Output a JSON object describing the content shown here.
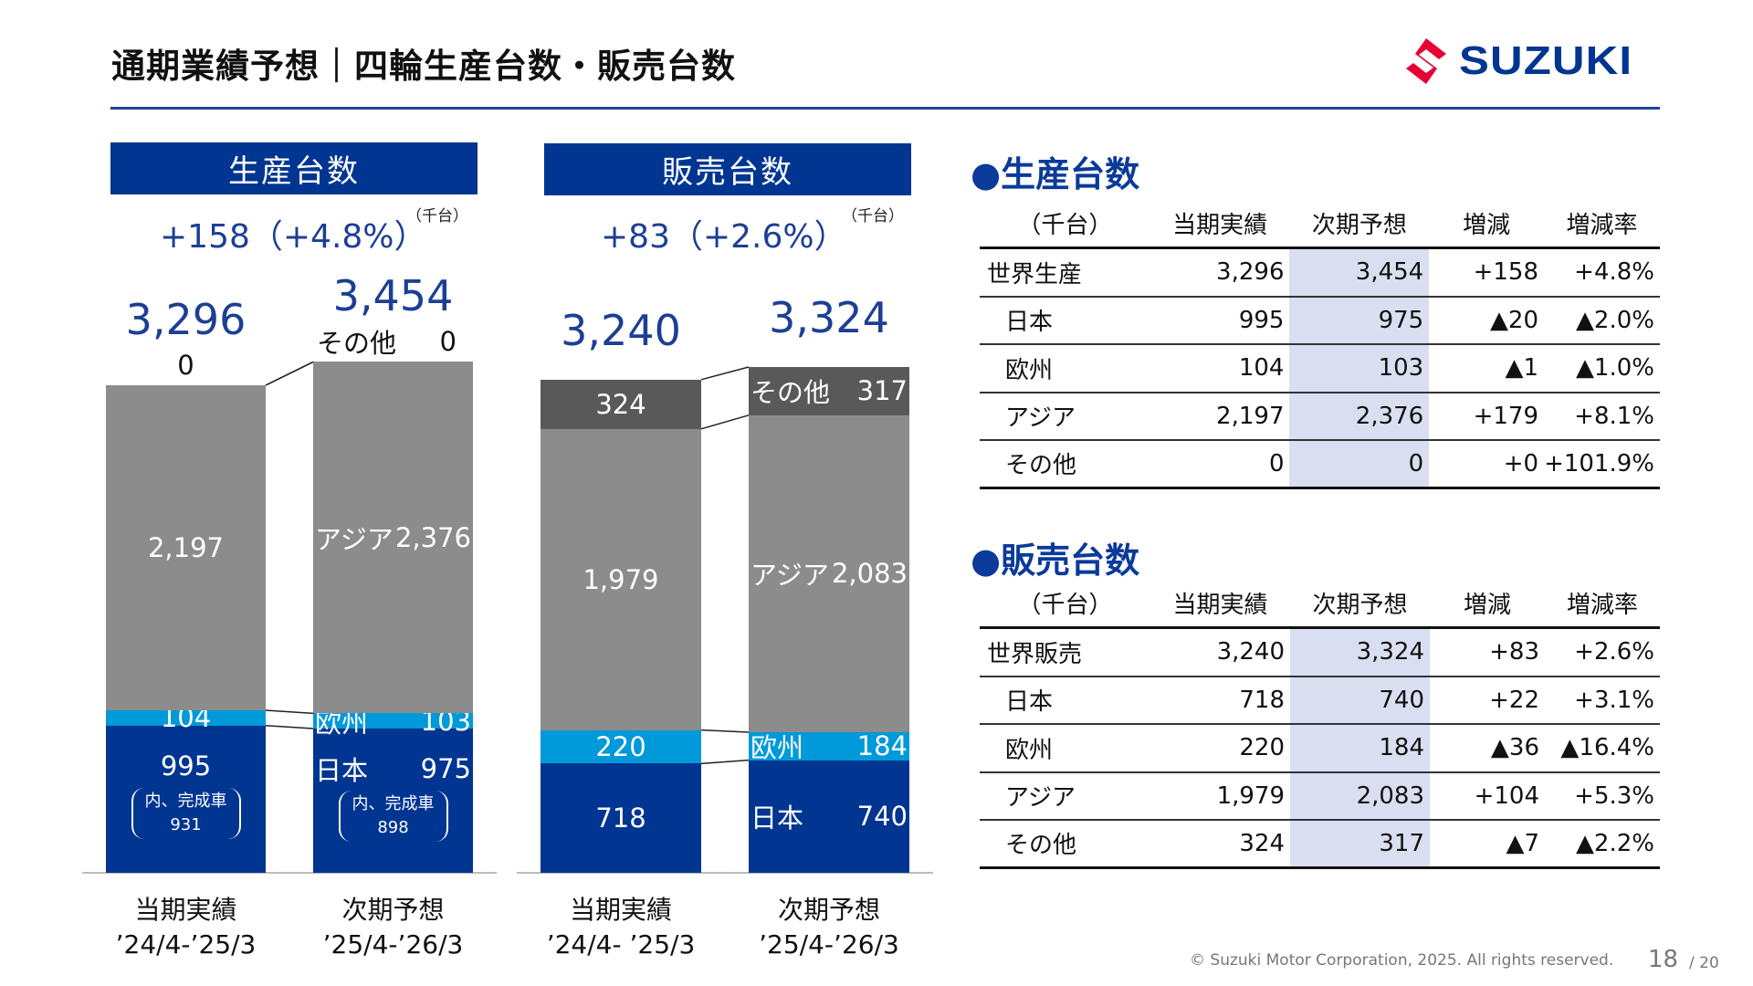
{
  "header": {
    "title": "通期業績予想｜四輪生産台数・販売台数",
    "logo_text": "SUZUKI"
  },
  "colors": {
    "navy": "#003591",
    "europe": "#0099d9",
    "asia": "#8c8c8c",
    "other_sales": "#595959",
    "accent_text": "#1c3f94",
    "logo_red": "#e60033"
  },
  "chart_data": [
    {
      "type": "stacked-bar",
      "title": "生産台数",
      "change": "+158（+4.8%）",
      "unit": "（千台）",
      "categories": [
        [
          "当期実績",
          "’24/4-’25/3"
        ],
        [
          "次期予想",
          "’25/4-’26/3"
        ]
      ],
      "totals": [
        "3,296",
        "3,454"
      ],
      "series": [
        {
          "name": "日本",
          "values": [
            995,
            975
          ],
          "labels": [
            "995",
            "975"
          ],
          "notes": [
            [
              "内、完成車",
              "931"
            ],
            [
              "内、完成車",
              "898"
            ]
          ],
          "color": "#003591"
        },
        {
          "name": "欧州",
          "values": [
            104,
            103
          ],
          "labels": [
            "104",
            "103"
          ],
          "color": "#0099d9"
        },
        {
          "name": "アジア",
          "values": [
            2197,
            2376
          ],
          "labels": [
            "2,197",
            "2,376"
          ],
          "color": "#8c8c8c"
        },
        {
          "name": "その他",
          "values": [
            0,
            0
          ],
          "labels": [
            "0",
            "0"
          ],
          "color": "#8c8c8c"
        }
      ]
    },
    {
      "type": "stacked-bar",
      "title": "販売台数",
      "change": "+83（+2.6%）",
      "unit": "（千台）",
      "categories": [
        [
          "当期実績",
          "’24/4- ’25/3"
        ],
        [
          "次期予想",
          "’25/4-’26/3"
        ]
      ],
      "totals": [
        "3,240",
        "3,324"
      ],
      "series": [
        {
          "name": "日本",
          "values": [
            718,
            740
          ],
          "labels": [
            "718",
            "740"
          ],
          "color": "#003591"
        },
        {
          "name": "欧州",
          "values": [
            220,
            184
          ],
          "labels": [
            "220",
            "184"
          ],
          "color": "#0099d9"
        },
        {
          "name": "アジア",
          "values": [
            1979,
            2083
          ],
          "labels": [
            "1,979",
            "2,083"
          ],
          "color": "#8c8c8c"
        },
        {
          "name": "その他",
          "values": [
            324,
            317
          ],
          "labels": [
            "324",
            "317"
          ],
          "color": "#595959"
        }
      ]
    }
  ],
  "tables": [
    {
      "title": "●生産台数",
      "headers": [
        "（千台）",
        "当期実績",
        "次期予想",
        "増減",
        "増減率"
      ],
      "rows": [
        [
          "世界生産",
          "3,296",
          "3,454",
          "+158",
          "+4.8%"
        ],
        [
          "日本",
          "995",
          "975",
          "▲20",
          "▲2.0%"
        ],
        [
          "欧州",
          "104",
          "103",
          "▲1",
          "▲1.0%"
        ],
        [
          "アジア",
          "2,197",
          "2,376",
          "+179",
          "+8.1%"
        ],
        [
          "その他",
          "0",
          "0",
          "+0",
          "+101.9%"
        ]
      ]
    },
    {
      "title": "●販売台数",
      "headers": [
        "（千台）",
        "当期実績",
        "次期予想",
        "増減",
        "増減率"
      ],
      "rows": [
        [
          "世界販売",
          "3,240",
          "3,324",
          "+83",
          "+2.6%"
        ],
        [
          "日本",
          "718",
          "740",
          "+22",
          "+3.1%"
        ],
        [
          "欧州",
          "220",
          "184",
          "▲36",
          "▲16.4%"
        ],
        [
          "アジア",
          "1,979",
          "2,083",
          "+104",
          "+5.3%"
        ],
        [
          "その他",
          "324",
          "317",
          "▲7",
          "▲2.2%"
        ]
      ]
    }
  ],
  "footer": {
    "copyright": "© Suzuki Motor Corporation, 2025. All rights reserved.",
    "page": "18",
    "total_pages": "/ 20"
  }
}
